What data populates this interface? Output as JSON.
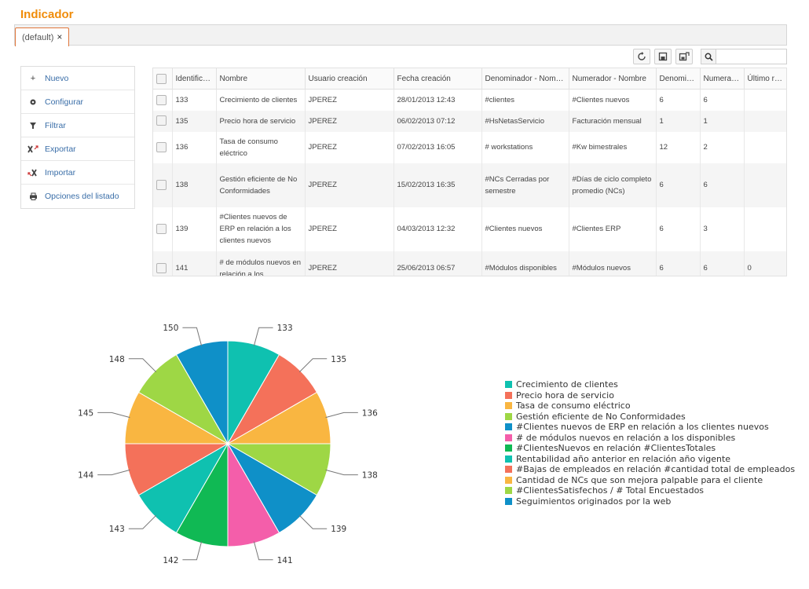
{
  "page": {
    "title": "Indicador"
  },
  "tabs": [
    {
      "label": "(default)"
    }
  ],
  "toolbar": {
    "icons": [
      "refresh-icon",
      "save-icon",
      "save-as-icon"
    ],
    "search_placeholder": ""
  },
  "sidemenu": {
    "items": [
      {
        "label": "Nuevo",
        "icon": "plus-icon"
      },
      {
        "label": "Configurar",
        "icon": "gear-icon"
      },
      {
        "label": "Filtrar",
        "icon": "filter-icon"
      },
      {
        "label": "Exportar",
        "icon": "excel-export-icon"
      },
      {
        "label": "Importar",
        "icon": "excel-import-icon"
      },
      {
        "label": "Opciones del listado",
        "icon": "print-icon"
      }
    ]
  },
  "grid": {
    "columns": [
      "Identifica...",
      "Nombre",
      "Usuario creación",
      "Fecha creación",
      "Denominador - Nomb...",
      "Numerador - Nombre",
      "Denomin...",
      "Numerad...",
      "Último re..."
    ],
    "rows": [
      [
        "133",
        "Crecimiento de clientes",
        "JPEREZ",
        "28/01/2013 12:43",
        "#clientes",
        "#Clientes nuevos",
        "6",
        "6",
        ""
      ],
      [
        "135",
        "Precio hora de servicio",
        "JPEREZ",
        "06/02/2013 07:12",
        "#HsNetasServicio",
        "Facturación mensual",
        "1",
        "1",
        ""
      ],
      [
        "136",
        "Tasa de consumo eléctrico",
        "JPEREZ",
        "07/02/2013 16:05",
        "# workstations",
        "#Kw bimestrales",
        "12",
        "2",
        ""
      ],
      [
        "138",
        "Gestión eficiente de No Conformidades",
        "JPEREZ",
        "15/02/2013 16:35",
        "#NCs Cerradas por semestre",
        "#Días de ciclo completo promedio (NCs)",
        "6",
        "6",
        ""
      ],
      [
        "139",
        "#Clientes nuevos de ERP en relación a los clientes nuevos",
        "JPEREZ",
        "04/03/2013 12:32",
        "#Clientes nuevos",
        "#Clientes ERP",
        "6",
        "3",
        ""
      ],
      [
        "141",
        "# de módulos nuevos en relación a los",
        "JPEREZ",
        "25/06/2013 06:57",
        "#Módulos disponibles",
        "#Módulos nuevos",
        "6",
        "6",
        "0"
      ]
    ]
  },
  "chart_data": {
    "type": "pie",
    "slice_labels": [
      "133",
      "135",
      "136",
      "138",
      "139",
      "141",
      "142",
      "143",
      "144",
      "145",
      "148",
      "150"
    ],
    "values": [
      1,
      1,
      1,
      1,
      1,
      1,
      1,
      1,
      1,
      1,
      1,
      1
    ],
    "legend": [
      "Crecimiento de clientes",
      "Precio hora de servicio",
      "Tasa de consumo eléctrico",
      "Gestión eficiente de No Conformidades",
      "#Clientes nuevos de ERP en relación a los clientes nuevos",
      "# de módulos nuevos en relación a los disponibles",
      "#ClientesNuevos en relación #ClientesTotales",
      "Rentabilidad año anterior en relación año vigente",
      "#Bajas de empleados en relación #cantidad total de empleados",
      "Cantidad de NCs que son mejora palpable para el cliente",
      "#ClientesSatisfechos / # Total Encuestados",
      "Seguimientos originados por la web"
    ],
    "colors": [
      "#0fc1b0",
      "#f4715a",
      "#f9b641",
      "#9ed745",
      "#0f90c8",
      "#f45eaa",
      "#10b954",
      "#0fc1b0",
      "#f4715a",
      "#f9b641",
      "#9ed745",
      "#0f90c8"
    ],
    "legend_position": "right"
  }
}
